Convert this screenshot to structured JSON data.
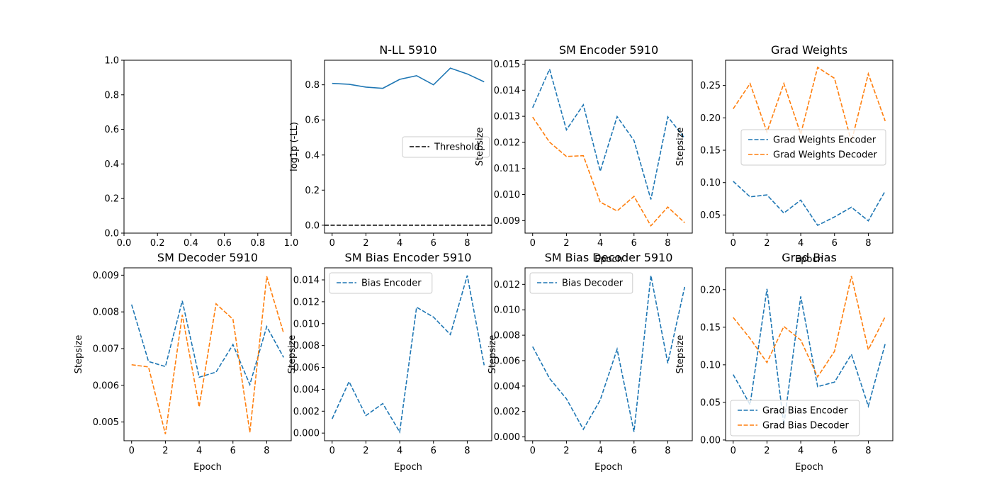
{
  "colors": {
    "blue": "#1f77b4",
    "orange": "#ff7f0e",
    "black": "#000000"
  },
  "chart_data": [
    {
      "type": "line",
      "title": "",
      "xlabel": "",
      "ylabel": "",
      "xlim": [
        0.0,
        1.0
      ],
      "ylim": [
        0.0,
        1.0
      ],
      "xticks": [
        "0.0",
        "0.2",
        "0.4",
        "0.6",
        "0.8",
        "1.0"
      ],
      "yticks": [
        "0.0",
        "0.2",
        "0.4",
        "0.6",
        "0.8",
        "1.0"
      ],
      "series": []
    },
    {
      "type": "line",
      "title": "N-LL 5910",
      "xlabel": "",
      "ylabel": "log1p (-LL)",
      "xlim": [
        -0.45,
        9.45
      ],
      "ylim": [
        -0.045,
        0.94
      ],
      "xticks": [
        "0",
        "2",
        "4",
        "6",
        "8"
      ],
      "yticks": [
        "0.0",
        "0.2",
        "0.4",
        "0.6",
        "0.8"
      ],
      "legend": "center-right",
      "series": [
        {
          "name": "",
          "color": "#1f77b4",
          "dash": "solid",
          "x": [
            0,
            1,
            2,
            3,
            4,
            5,
            6,
            7,
            8,
            9
          ],
          "y": [
            0.808,
            0.803,
            0.787,
            0.78,
            0.831,
            0.852,
            0.8,
            0.895,
            0.862,
            0.817
          ]
        },
        {
          "name": "Threshold",
          "color": "#000000",
          "dash": "dashed",
          "x": [
            -0.45,
            9.45
          ],
          "y": [
            0.0,
            0.0
          ]
        }
      ]
    },
    {
      "type": "line",
      "title": "SM Encoder 5910",
      "xlabel": "Epoch",
      "ylabel": "Stepsize",
      "xlim": [
        -0.45,
        9.45
      ],
      "ylim": [
        0.00852,
        0.01515
      ],
      "xticks": [
        "0",
        "2",
        "4",
        "6",
        "8"
      ],
      "yticks": [
        "0.009",
        "0.010",
        "0.011",
        "0.012",
        "0.013",
        "0.014",
        "0.015"
      ],
      "series": [
        {
          "name": "",
          "color": "#1f77b4",
          "dash": "dashed",
          "x": [
            0,
            1,
            2,
            3,
            4,
            5,
            6,
            7,
            8,
            9
          ],
          "y": [
            0.01333,
            0.01481,
            0.01248,
            0.01344,
            0.01089,
            0.01299,
            0.01207,
            0.00981,
            0.01298,
            0.01216
          ]
        },
        {
          "name": "",
          "color": "#ff7f0e",
          "dash": "dashed",
          "x": [
            0,
            1,
            2,
            3,
            4,
            5,
            6,
            7,
            8,
            9
          ],
          "y": [
            0.01297,
            0.01201,
            0.01146,
            0.01149,
            0.00971,
            0.00937,
            0.00993,
            0.0088,
            0.00952,
            0.00892
          ]
        }
      ]
    },
    {
      "type": "line",
      "title": "Grad Weights",
      "xlabel": "Epoch",
      "ylabel": "Stepsize",
      "xlim": [
        -0.45,
        9.45
      ],
      "ylim": [
        0.022,
        0.289
      ],
      "xticks": [
        "0",
        "2",
        "4",
        "6",
        "8"
      ],
      "yticks": [
        "0.05",
        "0.10",
        "0.15",
        "0.20",
        "0.25"
      ],
      "legend": "center-right",
      "series": [
        {
          "name": "Grad Weights Encoder",
          "color": "#1f77b4",
          "dash": "dashed",
          "x": [
            0,
            1,
            2,
            3,
            4,
            5,
            6,
            7,
            8,
            9
          ],
          "y": [
            0.102,
            0.078,
            0.081,
            0.053,
            0.073,
            0.034,
            0.047,
            0.062,
            0.041,
            0.087
          ]
        },
        {
          "name": "Grad Weights Decoder",
          "color": "#ff7f0e",
          "dash": "dashed",
          "x": [
            0,
            1,
            2,
            3,
            4,
            5,
            6,
            7,
            8,
            9
          ],
          "y": [
            0.214,
            0.253,
            0.178,
            0.253,
            0.175,
            0.278,
            0.261,
            0.163,
            0.268,
            0.195
          ]
        }
      ]
    },
    {
      "type": "line",
      "title": "SM Decoder 5910",
      "xlabel": "Epoch",
      "ylabel": "Stepsize",
      "xlim": [
        -0.45,
        9.45
      ],
      "ylim": [
        0.00449,
        0.0092
      ],
      "xticks": [
        "0",
        "2",
        "4",
        "6",
        "8"
      ],
      "yticks": [
        "0.005",
        "0.006",
        "0.007",
        "0.008",
        "0.009"
      ],
      "series": [
        {
          "name": "",
          "color": "#1f77b4",
          "dash": "dashed",
          "x": [
            0,
            1,
            2,
            3,
            4,
            5,
            6,
            7,
            8,
            9
          ],
          "y": [
            0.0082,
            0.00665,
            0.00651,
            0.0083,
            0.00622,
            0.00636,
            0.00711,
            0.00602,
            0.0076,
            0.00676
          ]
        },
        {
          "name": "",
          "color": "#ff7f0e",
          "dash": "dashed",
          "x": [
            0,
            1,
            2,
            3,
            4,
            5,
            6,
            7,
            8,
            9
          ],
          "y": [
            0.00656,
            0.0065,
            0.00467,
            0.00792,
            0.00541,
            0.00822,
            0.0078,
            0.00472,
            0.00897,
            0.00742
          ]
        }
      ]
    },
    {
      "type": "line",
      "title": "SM Bias Encoder 5910",
      "xlabel": "Epoch",
      "ylabel": "Stepsize",
      "xlim": [
        -0.45,
        9.45
      ],
      "ylim": [
        -0.0007,
        0.0151
      ],
      "xticks": [
        "0",
        "2",
        "4",
        "6",
        "8"
      ],
      "yticks": [
        "0.000",
        "0.002",
        "0.004",
        "0.006",
        "0.008",
        "0.010",
        "0.012",
        "0.014"
      ],
      "legend": "upper-left",
      "series": [
        {
          "name": "Bias Encoder",
          "color": "#1f77b4",
          "dash": "dashed",
          "x": [
            0,
            1,
            2,
            3,
            4,
            5,
            6,
            7,
            8,
            9
          ],
          "y": [
            0.0013,
            0.0047,
            0.0016,
            0.0027,
            0.0001,
            0.0115,
            0.0106,
            0.009,
            0.0144,
            0.0062
          ]
        }
      ]
    },
    {
      "type": "line",
      "title": "SM Bias Decoder 5910",
      "xlabel": "Epoch",
      "ylabel": "Stepsize",
      "xlim": [
        -0.45,
        9.45
      ],
      "ylim": [
        -0.0003,
        0.0133
      ],
      "xticks": [
        "0",
        "2",
        "4",
        "6",
        "8"
      ],
      "yticks": [
        "0.000",
        "0.002",
        "0.004",
        "0.006",
        "0.008",
        "0.010",
        "0.012"
      ],
      "legend": "upper-left",
      "series": [
        {
          "name": "Bias Decoder",
          "color": "#1f77b4",
          "dash": "dashed",
          "x": [
            0,
            1,
            2,
            3,
            4,
            5,
            6,
            7,
            8,
            9
          ],
          "y": [
            0.0071,
            0.0046,
            0.003,
            0.0006,
            0.0029,
            0.0069,
            0.0004,
            0.0127,
            0.0058,
            0.0118
          ]
        }
      ]
    },
    {
      "type": "line",
      "title": "Grad Bias",
      "xlabel": "Epoch",
      "ylabel": "Stepsize",
      "xlim": [
        -0.45,
        9.45
      ],
      "ylim": [
        -0.001,
        0.229
      ],
      "xticks": [
        "0",
        "2",
        "4",
        "6",
        "8"
      ],
      "yticks": [
        "0.00",
        "0.05",
        "0.10",
        "0.15",
        "0.20"
      ],
      "legend": "lower-left",
      "series": [
        {
          "name": "Grad Bias Encoder",
          "color": "#1f77b4",
          "dash": "dashed",
          "x": [
            0,
            1,
            2,
            3,
            4,
            5,
            6,
            7,
            8,
            9
          ],
          "y": [
            0.087,
            0.047,
            0.201,
            0.02,
            0.191,
            0.071,
            0.077,
            0.114,
            0.045,
            0.128
          ]
        },
        {
          "name": "Grad Bias Decoder",
          "color": "#ff7f0e",
          "dash": "dashed",
          "x": [
            0,
            1,
            2,
            3,
            4,
            5,
            6,
            7,
            8,
            9
          ],
          "y": [
            0.163,
            0.135,
            0.103,
            0.151,
            0.133,
            0.084,
            0.118,
            0.218,
            0.12,
            0.164
          ]
        }
      ]
    }
  ]
}
